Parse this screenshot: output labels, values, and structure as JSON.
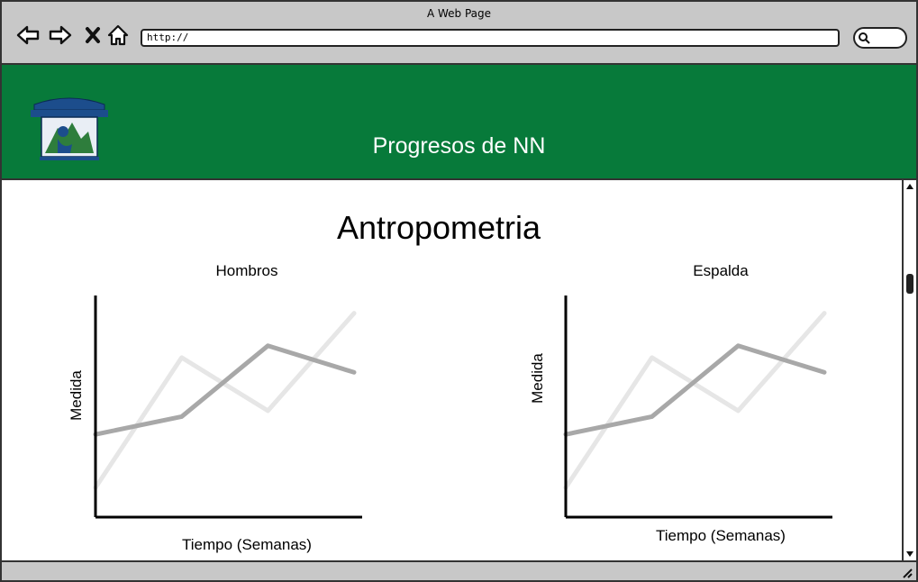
{
  "window": {
    "title": "A Web Page"
  },
  "toolbar": {
    "back_icon": "back-arrow-icon",
    "forward_icon": "forward-arrow-icon",
    "stop_icon": "close-icon",
    "home_icon": "home-icon",
    "url": "http://",
    "search_icon": "search-icon"
  },
  "header": {
    "title": "Progresos de NN",
    "background": "#077a3a",
    "logo_icon": "gym-logo"
  },
  "section": {
    "title": "Antropometria"
  },
  "chart_data": [
    {
      "type": "line",
      "title": "Hombros",
      "xlabel": "Tiempo (Semanas)",
      "ylabel": "Medida",
      "x": [
        0,
        1,
        2,
        3
      ],
      "series": [
        {
          "values": [
            1,
            5.4,
            3.6,
            6.9
          ],
          "color": "#e6e6e6"
        },
        {
          "values": [
            2.8,
            3.4,
            5.8,
            4.9
          ],
          "color": "#a8a8a8"
        }
      ],
      "ylim": [
        0,
        7.5
      ],
      "grid": false
    },
    {
      "type": "line",
      "title": "Espalda",
      "xlabel": "Tiempo (Semanas)",
      "ylabel": "Medida",
      "x": [
        0,
        1,
        2,
        3
      ],
      "series": [
        {
          "values": [
            1,
            5.4,
            3.6,
            6.9
          ],
          "color": "#e6e6e6"
        },
        {
          "values": [
            2.8,
            3.4,
            5.8,
            4.9
          ],
          "color": "#a8a8a8"
        }
      ],
      "ylim": [
        0,
        7.5
      ],
      "grid": false
    }
  ]
}
